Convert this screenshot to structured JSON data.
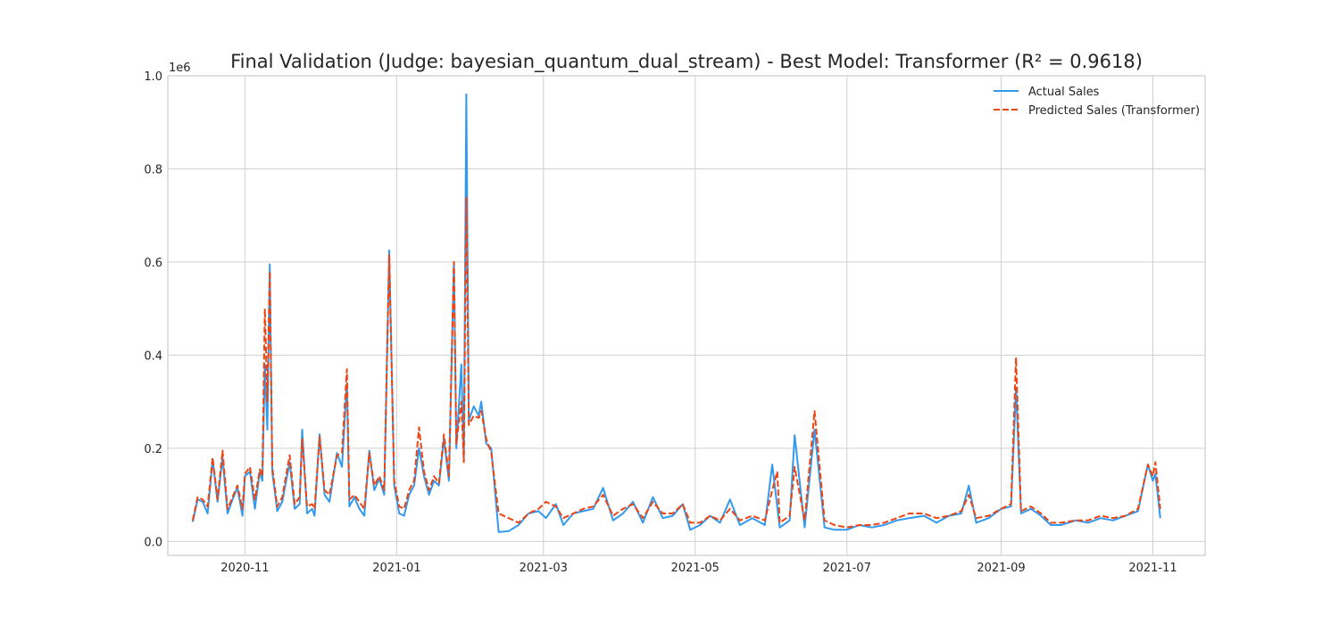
{
  "chart_data": {
    "type": "line",
    "title": "Final Validation (Judge: bayesian_quantum_dual_stream) - Best Model: Transformer (R² = 0.9618)",
    "xlabel": "",
    "ylabel": "",
    "y_scale_label": "1e6",
    "y_ticks": [
      "0.0",
      "0.2",
      "0.4",
      "0.6",
      "0.8",
      "1.0"
    ],
    "y_tick_values": [
      0,
      200000,
      400000,
      600000,
      800000,
      1000000
    ],
    "ylim": [
      -30000,
      1000000
    ],
    "xlim": [
      "2020-10-01",
      "2021-11-22"
    ],
    "x_ticks": [
      "2020-11",
      "2021-01",
      "2021-03",
      "2021-05",
      "2021-07",
      "2021-09",
      "2021-11"
    ],
    "x_tick_dates": [
      "2020-11-01",
      "2021-01-01",
      "2021-03-01",
      "2021-05-01",
      "2021-07-01",
      "2021-09-01",
      "2021-11-01"
    ],
    "grid": true,
    "legend_position": "top-right",
    "series": [
      {
        "name": "Actual Sales",
        "color": "#3399ee",
        "style": "solid",
        "points": [
          [
            "2020-10-11",
            42000
          ],
          [
            "2020-10-13",
            90000
          ],
          [
            "2020-10-15",
            85000
          ],
          [
            "2020-10-17",
            60000
          ],
          [
            "2020-10-19",
            175000
          ],
          [
            "2020-10-21",
            85000
          ],
          [
            "2020-10-23",
            180000
          ],
          [
            "2020-10-25",
            60000
          ],
          [
            "2020-10-27",
            90000
          ],
          [
            "2020-10-29",
            115000
          ],
          [
            "2020-10-31",
            55000
          ],
          [
            "2020-11-01",
            140000
          ],
          [
            "2020-11-03",
            150000
          ],
          [
            "2020-11-05",
            70000
          ],
          [
            "2020-11-07",
            150000
          ],
          [
            "2020-11-08",
            130000
          ],
          [
            "2020-11-09",
            380000
          ],
          [
            "2020-11-10",
            240000
          ],
          [
            "2020-11-11",
            595000
          ],
          [
            "2020-11-12",
            150000
          ],
          [
            "2020-11-14",
            65000
          ],
          [
            "2020-11-16",
            85000
          ],
          [
            "2020-11-19",
            170000
          ],
          [
            "2020-11-21",
            70000
          ],
          [
            "2020-11-23",
            80000
          ],
          [
            "2020-11-24",
            240000
          ],
          [
            "2020-11-26",
            60000
          ],
          [
            "2020-11-28",
            70000
          ],
          [
            "2020-11-29",
            55000
          ],
          [
            "2020-12-01",
            230000
          ],
          [
            "2020-12-03",
            100000
          ],
          [
            "2020-12-05",
            85000
          ],
          [
            "2020-12-08",
            190000
          ],
          [
            "2020-12-10",
            160000
          ],
          [
            "2020-12-12",
            340000
          ],
          [
            "2020-12-13",
            75000
          ],
          [
            "2020-12-15",
            95000
          ],
          [
            "2020-12-17",
            70000
          ],
          [
            "2020-12-19",
            55000
          ],
          [
            "2020-12-21",
            195000
          ],
          [
            "2020-12-23",
            110000
          ],
          [
            "2020-12-25",
            135000
          ],
          [
            "2020-12-27",
            100000
          ],
          [
            "2020-12-29",
            625000
          ],
          [
            "2020-12-31",
            120000
          ],
          [
            "2021-01-02",
            60000
          ],
          [
            "2021-01-04",
            55000
          ],
          [
            "2021-01-06",
            100000
          ],
          [
            "2021-01-08",
            120000
          ],
          [
            "2021-01-10",
            200000
          ],
          [
            "2021-01-12",
            140000
          ],
          [
            "2021-01-14",
            100000
          ],
          [
            "2021-01-16",
            130000
          ],
          [
            "2021-01-18",
            120000
          ],
          [
            "2021-01-20",
            220000
          ],
          [
            "2021-01-22",
            130000
          ],
          [
            "2021-01-24",
            600000
          ],
          [
            "2021-01-25",
            200000
          ],
          [
            "2021-01-27",
            380000
          ],
          [
            "2021-01-28",
            180000
          ],
          [
            "2021-01-29",
            960000
          ],
          [
            "2021-01-30",
            260000
          ],
          [
            "2021-02-01",
            290000
          ],
          [
            "2021-02-03",
            270000
          ],
          [
            "2021-02-04",
            300000
          ],
          [
            "2021-02-06",
            210000
          ],
          [
            "2021-02-08",
            200000
          ],
          [
            "2021-02-11",
            20000
          ],
          [
            "2021-02-15",
            22000
          ],
          [
            "2021-02-19",
            35000
          ],
          [
            "2021-02-23",
            60000
          ],
          [
            "2021-02-27",
            65000
          ],
          [
            "2021-03-02",
            50000
          ],
          [
            "2021-03-06",
            80000
          ],
          [
            "2021-03-09",
            35000
          ],
          [
            "2021-03-13",
            60000
          ],
          [
            "2021-03-17",
            65000
          ],
          [
            "2021-03-21",
            70000
          ],
          [
            "2021-03-25",
            115000
          ],
          [
            "2021-03-29",
            45000
          ],
          [
            "2021-04-02",
            60000
          ],
          [
            "2021-04-06",
            85000
          ],
          [
            "2021-04-10",
            40000
          ],
          [
            "2021-04-14",
            95000
          ],
          [
            "2021-04-18",
            50000
          ],
          [
            "2021-04-22",
            55000
          ],
          [
            "2021-04-26",
            80000
          ],
          [
            "2021-04-29",
            25000
          ],
          [
            "2021-05-03",
            35000
          ],
          [
            "2021-05-07",
            55000
          ],
          [
            "2021-05-11",
            40000
          ],
          [
            "2021-05-15",
            90000
          ],
          [
            "2021-05-19",
            35000
          ],
          [
            "2021-05-24",
            50000
          ],
          [
            "2021-05-29",
            35000
          ],
          [
            "2021-06-01",
            165000
          ],
          [
            "2021-06-04",
            30000
          ],
          [
            "2021-06-08",
            45000
          ],
          [
            "2021-06-10",
            228000
          ],
          [
            "2021-06-14",
            30000
          ],
          [
            "2021-06-18",
            240000
          ],
          [
            "2021-06-22",
            30000
          ],
          [
            "2021-06-26",
            25000
          ],
          [
            "2021-07-01",
            25000
          ],
          [
            "2021-07-06",
            35000
          ],
          [
            "2021-07-11",
            30000
          ],
          [
            "2021-07-16",
            35000
          ],
          [
            "2021-07-21",
            45000
          ],
          [
            "2021-07-26",
            50000
          ],
          [
            "2021-08-01",
            55000
          ],
          [
            "2021-08-06",
            40000
          ],
          [
            "2021-08-11",
            55000
          ],
          [
            "2021-08-16",
            60000
          ],
          [
            "2021-08-19",
            120000
          ],
          [
            "2021-08-22",
            40000
          ],
          [
            "2021-08-27",
            50000
          ],
          [
            "2021-09-01",
            70000
          ],
          [
            "2021-09-05",
            75000
          ],
          [
            "2021-09-07",
            330000
          ],
          [
            "2021-09-09",
            60000
          ],
          [
            "2021-09-13",
            70000
          ],
          [
            "2021-09-17",
            55000
          ],
          [
            "2021-09-21",
            35000
          ],
          [
            "2021-09-25",
            35000
          ],
          [
            "2021-10-01",
            45000
          ],
          [
            "2021-10-06",
            40000
          ],
          [
            "2021-10-11",
            50000
          ],
          [
            "2021-10-16",
            45000
          ],
          [
            "2021-10-21",
            55000
          ],
          [
            "2021-10-26",
            65000
          ],
          [
            "2021-10-30",
            165000
          ],
          [
            "2021-11-01",
            130000
          ],
          [
            "2021-11-02",
            145000
          ],
          [
            "2021-11-04",
            50000
          ]
        ]
      },
      {
        "name": "Predicted Sales (Transformer)",
        "color": "#ee4411",
        "style": "dashed",
        "points": [
          [
            "2020-10-11",
            45000
          ],
          [
            "2020-10-13",
            95000
          ],
          [
            "2020-10-15",
            90000
          ],
          [
            "2020-10-17",
            75000
          ],
          [
            "2020-10-19",
            180000
          ],
          [
            "2020-10-21",
            90000
          ],
          [
            "2020-10-23",
            195000
          ],
          [
            "2020-10-25",
            70000
          ],
          [
            "2020-10-27",
            95000
          ],
          [
            "2020-10-29",
            120000
          ],
          [
            "2020-10-31",
            70000
          ],
          [
            "2020-11-01",
            145000
          ],
          [
            "2020-11-03",
            160000
          ],
          [
            "2020-11-05",
            90000
          ],
          [
            "2020-11-07",
            155000
          ],
          [
            "2020-11-08",
            140000
          ],
          [
            "2020-11-09",
            500000
          ],
          [
            "2020-11-10",
            300000
          ],
          [
            "2020-11-11",
            580000
          ],
          [
            "2020-11-12",
            160000
          ],
          [
            "2020-11-14",
            75000
          ],
          [
            "2020-11-16",
            95000
          ],
          [
            "2020-11-19",
            185000
          ],
          [
            "2020-11-21",
            80000
          ],
          [
            "2020-11-23",
            95000
          ],
          [
            "2020-11-24",
            220000
          ],
          [
            "2020-11-26",
            75000
          ],
          [
            "2020-11-28",
            80000
          ],
          [
            "2020-11-29",
            70000
          ],
          [
            "2020-12-01",
            225000
          ],
          [
            "2020-12-03",
            110000
          ],
          [
            "2020-12-05",
            100000
          ],
          [
            "2020-12-08",
            185000
          ],
          [
            "2020-12-10",
            190000
          ],
          [
            "2020-12-12",
            370000
          ],
          [
            "2020-12-13",
            90000
          ],
          [
            "2020-12-15",
            100000
          ],
          [
            "2020-12-17",
            85000
          ],
          [
            "2020-12-19",
            70000
          ],
          [
            "2020-12-21",
            190000
          ],
          [
            "2020-12-23",
            120000
          ],
          [
            "2020-12-25",
            140000
          ],
          [
            "2020-12-27",
            110000
          ],
          [
            "2020-12-29",
            615000
          ],
          [
            "2020-12-31",
            130000
          ],
          [
            "2021-01-02",
            75000
          ],
          [
            "2021-01-04",
            70000
          ],
          [
            "2021-01-06",
            110000
          ],
          [
            "2021-01-08",
            130000
          ],
          [
            "2021-01-10",
            245000
          ],
          [
            "2021-01-12",
            150000
          ],
          [
            "2021-01-14",
            110000
          ],
          [
            "2021-01-16",
            140000
          ],
          [
            "2021-01-18",
            125000
          ],
          [
            "2021-01-20",
            230000
          ],
          [
            "2021-01-22",
            140000
          ],
          [
            "2021-01-24",
            600000
          ],
          [
            "2021-01-25",
            210000
          ],
          [
            "2021-01-27",
            300000
          ],
          [
            "2021-01-28",
            170000
          ],
          [
            "2021-01-29",
            740000
          ],
          [
            "2021-01-30",
            250000
          ],
          [
            "2021-02-01",
            270000
          ],
          [
            "2021-02-03",
            265000
          ],
          [
            "2021-02-04",
            280000
          ],
          [
            "2021-02-06",
            220000
          ],
          [
            "2021-02-08",
            190000
          ],
          [
            "2021-02-11",
            60000
          ],
          [
            "2021-02-15",
            50000
          ],
          [
            "2021-02-19",
            40000
          ],
          [
            "2021-02-23",
            60000
          ],
          [
            "2021-02-27",
            70000
          ],
          [
            "2021-03-02",
            85000
          ],
          [
            "2021-03-06",
            75000
          ],
          [
            "2021-03-09",
            50000
          ],
          [
            "2021-03-13",
            60000
          ],
          [
            "2021-03-17",
            70000
          ],
          [
            "2021-03-21",
            75000
          ],
          [
            "2021-03-25",
            100000
          ],
          [
            "2021-03-29",
            55000
          ],
          [
            "2021-04-02",
            70000
          ],
          [
            "2021-04-06",
            80000
          ],
          [
            "2021-04-10",
            50000
          ],
          [
            "2021-04-14",
            85000
          ],
          [
            "2021-04-18",
            60000
          ],
          [
            "2021-04-22",
            60000
          ],
          [
            "2021-04-26",
            80000
          ],
          [
            "2021-04-29",
            40000
          ],
          [
            "2021-05-03",
            40000
          ],
          [
            "2021-05-07",
            55000
          ],
          [
            "2021-05-11",
            45000
          ],
          [
            "2021-05-15",
            70000
          ],
          [
            "2021-05-19",
            45000
          ],
          [
            "2021-05-24",
            55000
          ],
          [
            "2021-05-29",
            45000
          ],
          [
            "2021-06-01",
            110000
          ],
          [
            "2021-06-03",
            150000
          ],
          [
            "2021-06-04",
            40000
          ],
          [
            "2021-06-08",
            55000
          ],
          [
            "2021-06-10",
            160000
          ],
          [
            "2021-06-14",
            45000
          ],
          [
            "2021-06-18",
            280000
          ],
          [
            "2021-06-22",
            45000
          ],
          [
            "2021-06-26",
            35000
          ],
          [
            "2021-07-01",
            30000
          ],
          [
            "2021-07-06",
            35000
          ],
          [
            "2021-07-11",
            35000
          ],
          [
            "2021-07-16",
            40000
          ],
          [
            "2021-07-21",
            50000
          ],
          [
            "2021-07-26",
            60000
          ],
          [
            "2021-08-01",
            60000
          ],
          [
            "2021-08-06",
            50000
          ],
          [
            "2021-08-11",
            55000
          ],
          [
            "2021-08-16",
            65000
          ],
          [
            "2021-08-19",
            100000
          ],
          [
            "2021-08-22",
            50000
          ],
          [
            "2021-08-27",
            55000
          ],
          [
            "2021-09-01",
            70000
          ],
          [
            "2021-09-05",
            80000
          ],
          [
            "2021-09-07",
            395000
          ],
          [
            "2021-09-09",
            65000
          ],
          [
            "2021-09-13",
            75000
          ],
          [
            "2021-09-17",
            60000
          ],
          [
            "2021-09-21",
            40000
          ],
          [
            "2021-09-25",
            40000
          ],
          [
            "2021-10-01",
            45000
          ],
          [
            "2021-10-06",
            45000
          ],
          [
            "2021-10-11",
            55000
          ],
          [
            "2021-10-16",
            50000
          ],
          [
            "2021-10-21",
            55000
          ],
          [
            "2021-10-26",
            70000
          ],
          [
            "2021-10-30",
            165000
          ],
          [
            "2021-11-01",
            140000
          ],
          [
            "2021-11-02",
            170000
          ],
          [
            "2021-11-04",
            70000
          ]
        ]
      }
    ]
  }
}
